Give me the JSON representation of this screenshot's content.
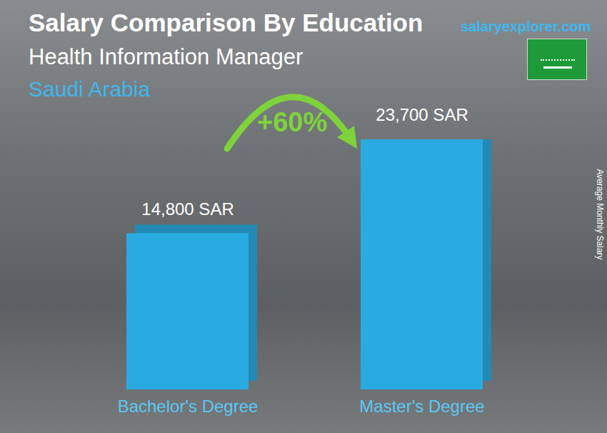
{
  "chart_data": {
    "type": "bar",
    "title": "Salary Comparison By Education",
    "subtitle": "Health Information Manager",
    "location": "Saudi Arabia",
    "source": "salaryexplorer.com",
    "y_label": "Average Monthly Salary",
    "annotation": "+60%",
    "categories": [
      "Bachelor's Degree",
      "Master's Degree"
    ],
    "values": [
      14800,
      23700
    ],
    "value_labels": [
      "14,800 SAR",
      "23,700 SAR"
    ],
    "color": "#29abe2",
    "data_labels": true,
    "tick_labels": "x",
    "grid": false
  }
}
